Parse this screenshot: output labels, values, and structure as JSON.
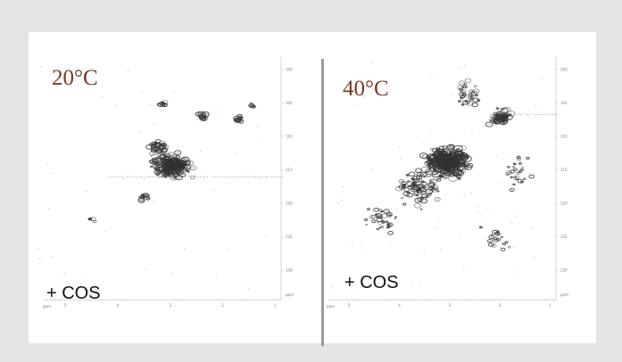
{
  "panels": [
    {
      "temperature": "20°C",
      "condition": "+ COS",
      "x_axis_unit": "ppm",
      "x_ticks": [
        "5",
        "4",
        "3",
        "2",
        "1"
      ],
      "y_axis_unit": "ppm",
      "y_ticks": [
        "100",
        "105",
        "110",
        "115",
        "120",
        "125",
        "130"
      ]
    },
    {
      "temperature": "40°C",
      "condition": "+ COS",
      "x_axis_unit": "ppm",
      "x_ticks": [
        "5",
        "4",
        "3",
        "2",
        "1"
      ],
      "y_axis_unit": "ppm",
      "y_ticks": [
        "100",
        "105",
        "110",
        "115",
        "120",
        "125",
        "130"
      ]
    }
  ],
  "colors": {
    "background": "#e4e4e4",
    "card": "#ffffff",
    "temperature_text": "#7a3a26",
    "peaks": "#333333",
    "divider": "#9a9a9a"
  }
}
